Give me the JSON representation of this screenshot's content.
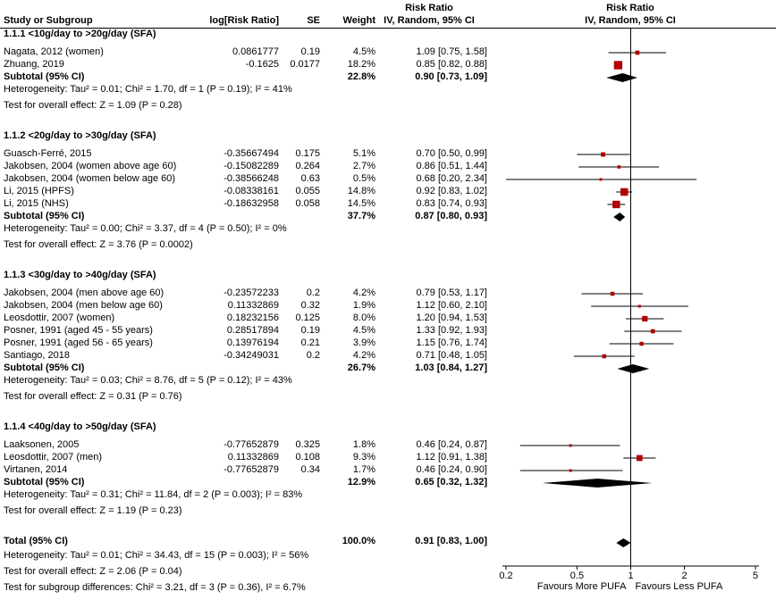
{
  "header": {
    "study": "Study or Subgroup",
    "logrr": "log[Risk Ratio]",
    "se": "SE",
    "weight": "Weight",
    "effect_top": "Risk Ratio",
    "effect_bottom": "IV, Random, 95% CI"
  },
  "chart_data": {
    "type": "forest",
    "scale": "log",
    "xlim": [
      0.2,
      5
    ],
    "ticks": [
      "0.2",
      "0.5",
      "1",
      "2",
      "5"
    ],
    "favours_left": "Favours More PUFA",
    "favours_right": "Favours Less PUFA",
    "marker_color": "#b00000",
    "diamond_color": "#000000",
    "line_color": "#000000",
    "rows": [
      {
        "type": "group",
        "label": "1.1.1 <10g/day to >20g/day (SFA)"
      },
      {
        "type": "study",
        "label": "Nagata, 2012 (women)",
        "logrr": "0.0861777",
        "se": "0.19",
        "weight": "4.5%",
        "ci_text": "1.09 [0.75, 1.58]",
        "est": 1.09,
        "lo": 0.75,
        "hi": 1.58,
        "w": 4.5
      },
      {
        "type": "study",
        "label": "Zhuang, 2019",
        "logrr": "-0.1625",
        "se": "0.0177",
        "weight": "18.2%",
        "ci_text": "0.85 [0.82, 0.88]",
        "est": 0.85,
        "lo": 0.82,
        "hi": 0.88,
        "w": 18.2
      },
      {
        "type": "subtotal",
        "label": "Subtotal (95% CI)",
        "weight": "22.8%",
        "ci_text": "0.90 [0.73, 1.09]",
        "est": 0.9,
        "lo": 0.73,
        "hi": 1.09
      },
      {
        "type": "stat",
        "label": "Heterogeneity: Tau² = 0.01; Chi² = 1.70, df = 1 (P = 0.19); I² = 41%"
      },
      {
        "type": "stat",
        "label": "Test for overall effect: Z = 1.09 (P = 0.28)"
      },
      {
        "type": "spacer"
      },
      {
        "type": "group",
        "label": "1.1.2 <20g/day to >30g/day (SFA)"
      },
      {
        "type": "study",
        "label": "Guasch-Ferré, 2015",
        "logrr": "-0.35667494",
        "se": "0.175",
        "weight": "5.1%",
        "ci_text": "0.70 [0.50, 0.99]",
        "est": 0.7,
        "lo": 0.5,
        "hi": 0.99,
        "w": 5.1
      },
      {
        "type": "study",
        "label": "Jakobsen, 2004 (women above age 60)",
        "logrr": "-0.15082289",
        "se": "0.264",
        "weight": "2.7%",
        "ci_text": "0.86 [0.51, 1.44]",
        "est": 0.86,
        "lo": 0.51,
        "hi": 1.44,
        "w": 2.7
      },
      {
        "type": "study",
        "label": "Jakobsen, 2004 (women below age 60)",
        "logrr": "-0.38566248",
        "se": "0.63",
        "weight": "0.5%",
        "ci_text": "0.68 [0.20, 2.34]",
        "est": 0.68,
        "lo": 0.2,
        "hi": 2.34,
        "w": 0.5
      },
      {
        "type": "study",
        "label": "Li, 2015 (HPFS)",
        "logrr": "-0.08338161",
        "se": "0.055",
        "weight": "14.8%",
        "ci_text": "0.92 [0.83, 1.02]",
        "est": 0.92,
        "lo": 0.83,
        "hi": 1.02,
        "w": 14.8
      },
      {
        "type": "study",
        "label": "Li, 2015 (NHS)",
        "logrr": "-0.18632958",
        "se": "0.058",
        "weight": "14.5%",
        "ci_text": "0.83 [0.74, 0.93]",
        "est": 0.83,
        "lo": 0.74,
        "hi": 0.93,
        "w": 14.5
      },
      {
        "type": "subtotal",
        "label": "Subtotal (95% CI)",
        "weight": "37.7%",
        "ci_text": "0.87 [0.80, 0.93]",
        "est": 0.87,
        "lo": 0.8,
        "hi": 0.93
      },
      {
        "type": "stat",
        "label": "Heterogeneity: Tau² = 0.00; Chi² = 3.37, df = 4 (P = 0.50); I² = 0%"
      },
      {
        "type": "stat",
        "label": "Test for overall effect: Z = 3.76 (P = 0.0002)"
      },
      {
        "type": "spacer"
      },
      {
        "type": "group",
        "label": "1.1.3 <30g/day to >40g/day (SFA)"
      },
      {
        "type": "study",
        "label": "Jakobsen, 2004 (men above age 60)",
        "logrr": "-0.23572233",
        "se": "0.2",
        "weight": "4.2%",
        "ci_text": "0.79 [0.53, 1.17]",
        "est": 0.79,
        "lo": 0.53,
        "hi": 1.17,
        "w": 4.2
      },
      {
        "type": "study",
        "label": "Jakobsen, 2004 (men below age 60)",
        "logrr": "0.11332869",
        "se": "0.32",
        "weight": "1.9%",
        "ci_text": "1.12 [0.60, 2.10]",
        "est": 1.12,
        "lo": 0.6,
        "hi": 2.1,
        "w": 1.9
      },
      {
        "type": "study",
        "label": "Leosdottir, 2007 (women)",
        "logrr": "0.18232156",
        "se": "0.125",
        "weight": "8.0%",
        "ci_text": "1.20 [0.94, 1.53]",
        "est": 1.2,
        "lo": 0.94,
        "hi": 1.53,
        "w": 8.0
      },
      {
        "type": "study",
        "label": "Posner, 1991 (aged 45 - 55 years)",
        "logrr": "0.28517894",
        "se": "0.19",
        "weight": "4.5%",
        "ci_text": "1.33 [0.92, 1.93]",
        "est": 1.33,
        "lo": 0.92,
        "hi": 1.93,
        "w": 4.5
      },
      {
        "type": "study",
        "label": "Posner, 1991 (aged 56 - 65 years)",
        "logrr": "0.13976194",
        "se": "0.21",
        "weight": "3.9%",
        "ci_text": "1.15 [0.76, 1.74]",
        "est": 1.15,
        "lo": 0.76,
        "hi": 1.74,
        "w": 3.9
      },
      {
        "type": "study",
        "label": "Santiago, 2018",
        "logrr": "-0.34249031",
        "se": "0.2",
        "weight": "4.2%",
        "ci_text": "0.71 [0.48, 1.05]",
        "est": 0.71,
        "lo": 0.48,
        "hi": 1.05,
        "w": 4.2
      },
      {
        "type": "subtotal",
        "label": "Subtotal (95% CI)",
        "weight": "26.7%",
        "ci_text": "1.03 [0.84, 1.27]",
        "est": 1.03,
        "lo": 0.84,
        "hi": 1.27
      },
      {
        "type": "stat",
        "label": "Heterogeneity: Tau² = 0.03; Chi² = 8.76, df = 5 (P = 0.12); I² = 43%"
      },
      {
        "type": "stat",
        "label": "Test for overall effect: Z = 0.31 (P = 0.76)"
      },
      {
        "type": "spacer"
      },
      {
        "type": "group",
        "label": "1.1.4 <40g/day to >50g/day (SFA)"
      },
      {
        "type": "study",
        "label": "Laaksonen, 2005",
        "logrr": "-0.77652879",
        "se": "0.325",
        "weight": "1.8%",
        "ci_text": "0.46 [0.24, 0.87]",
        "est": 0.46,
        "lo": 0.24,
        "hi": 0.87,
        "w": 1.8
      },
      {
        "type": "study",
        "label": "Leosdottir, 2007 (men)",
        "logrr": "0.11332869",
        "se": "0.108",
        "weight": "9.3%",
        "ci_text": "1.12 [0.91, 1.38]",
        "est": 1.12,
        "lo": 0.91,
        "hi": 1.38,
        "w": 9.3
      },
      {
        "type": "study",
        "label": "Virtanen, 2014",
        "logrr": "-0.77652879",
        "se": "0.34",
        "weight": "1.7%",
        "ci_text": "0.46 [0.24, 0.90]",
        "est": 0.46,
        "lo": 0.24,
        "hi": 0.9,
        "w": 1.7
      },
      {
        "type": "subtotal",
        "label": "Subtotal (95% CI)",
        "weight": "12.9%",
        "ci_text": "0.65 [0.32, 1.32]",
        "est": 0.65,
        "lo": 0.32,
        "hi": 1.32
      },
      {
        "type": "stat",
        "label": "Heterogeneity: Tau² = 0.31; Chi² = 11.84, df = 2 (P = 0.003); I² = 83%"
      },
      {
        "type": "stat",
        "label": "Test for overall effect: Z = 1.19 (P = 0.23)"
      },
      {
        "type": "spacer"
      },
      {
        "type": "total",
        "label": "Total (95% CI)",
        "weight": "100.0%",
        "ci_text": "0.91 [0.83, 1.00]",
        "est": 0.91,
        "lo": 0.83,
        "hi": 1.0
      },
      {
        "type": "stat",
        "label": "Heterogeneity: Tau² = 0.01; Chi² = 34.43, df = 15 (P = 0.003); I² = 56%",
        "axis_at_bottom": true
      },
      {
        "type": "stat",
        "label": "Test for overall effect: Z = 2.06 (P = 0.04)"
      },
      {
        "type": "stat",
        "label": "Test for subgroup differences: Chi² = 3.21, df = 3 (P = 0.36), I² = 6.7%"
      }
    ]
  }
}
